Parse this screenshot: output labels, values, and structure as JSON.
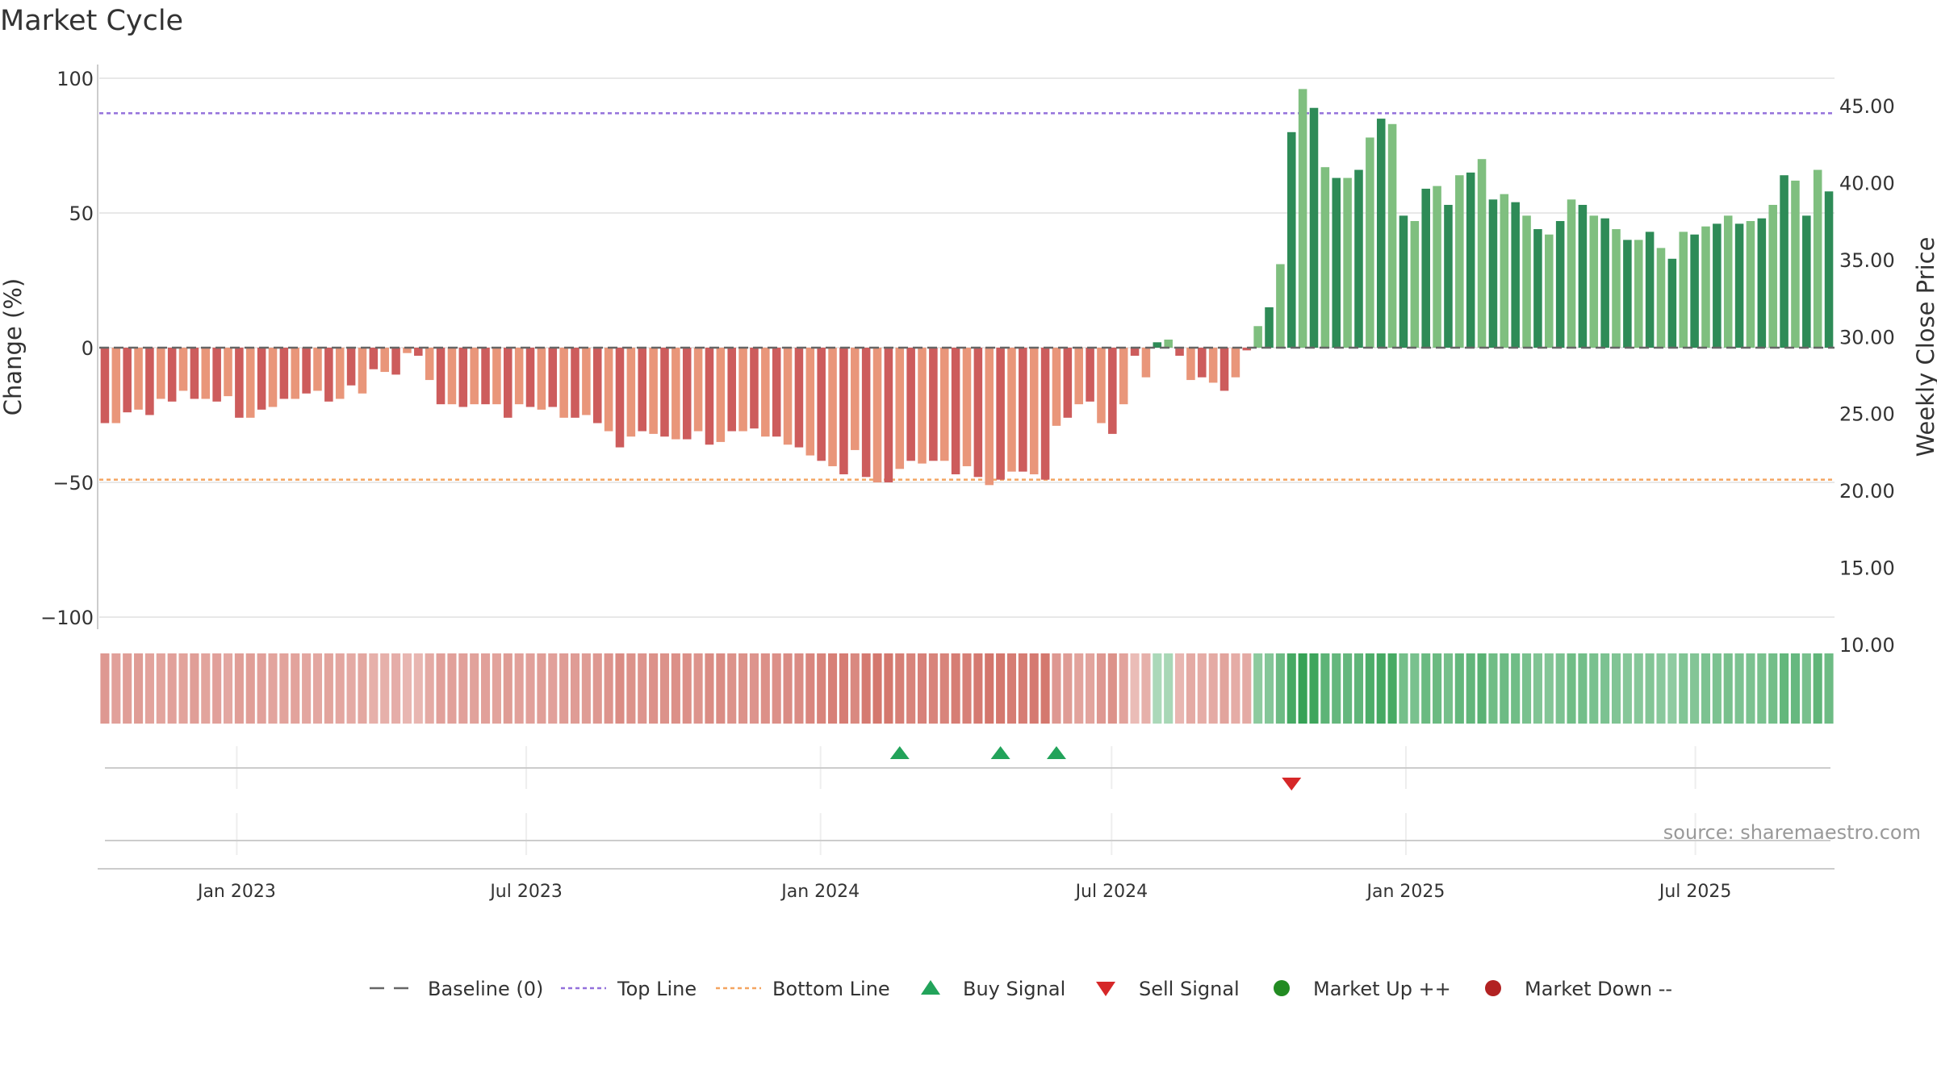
{
  "title": "Market Cycle",
  "source": "source: sharemaestro.com",
  "colors": {
    "neg_dark": "#cd5c5c",
    "neg_light": "#e9967a",
    "pos_dark": "#2e8b57",
    "pos_light": "#7fbf7f",
    "top_line": "#9370db",
    "bottom_line": "#f4a460",
    "baseline": "#666666",
    "buy": "#22a35a",
    "sell": "#d62728",
    "up": "#228b22",
    "down": "#b22222"
  },
  "chart_data": {
    "type": "bar",
    "ylabel": "Change (%)",
    "y2label": "Weekly Close Price",
    "ylim": [
      -100,
      100
    ],
    "y2lim": [
      10,
      45
    ],
    "y_ticks": [
      "100",
      "50",
      "0",
      "−50",
      "−100"
    ],
    "y2_ticks": [
      "45.00",
      "40.00",
      "35.00",
      "30.00",
      "25.00",
      "20.00",
      "15.00",
      "10.00"
    ],
    "x_ticks": [
      "Jan 2023",
      "Jul 2023",
      "Jan 2024",
      "Jul 2024",
      "Jan 2025",
      "Jul 2025"
    ],
    "top_line": 87,
    "bottom_line": -49,
    "start_date": "2022-10-07",
    "values": [
      -28,
      -28,
      -24,
      -23,
      -25,
      -19,
      -20,
      -16,
      -19,
      -19,
      -20,
      -18,
      -26,
      -26,
      -23,
      -22,
      -19,
      -19,
      -17,
      -16,
      -20,
      -19,
      -14,
      -17,
      -8,
      -9,
      -10,
      -2,
      -3,
      -12,
      -21,
      -21,
      -22,
      -21,
      -21,
      -21,
      -26,
      -21,
      -22,
      -23,
      -22,
      -26,
      -26,
      -25,
      -28,
      -31,
      -37,
      -33,
      -31,
      -32,
      -33,
      -34,
      -34,
      -31,
      -36,
      -35,
      -31,
      -31,
      -30,
      -33,
      -33,
      -36,
      -37,
      -40,
      -42,
      -44,
      -47,
      -38,
      -48,
      -50,
      -50,
      -45,
      -42,
      -43,
      -42,
      -42,
      -47,
      -44,
      -48,
      -51,
      -49,
      -46,
      -46,
      -47,
      -49,
      -29,
      -26,
      -21,
      -20,
      -28,
      -32,
      -21,
      -3,
      -11,
      2,
      3,
      -3,
      -12,
      -11,
      -13,
      -16,
      -11,
      -1,
      8,
      15,
      31,
      80,
      96,
      89,
      67,
      63,
      63,
      66,
      78,
      85,
      83,
      49,
      47,
      59,
      60,
      53,
      64,
      65,
      70,
      55,
      57,
      54,
      49,
      44,
      42,
      47,
      55,
      53,
      49,
      48,
      44,
      40,
      40,
      43,
      37,
      33,
      43,
      42,
      45,
      46,
      49,
      46,
      47,
      48,
      53,
      64,
      62,
      49,
      66,
      58
    ],
    "strength": [
      0.45,
      0.38,
      0.4,
      0.42,
      0.36,
      0.35,
      0.38,
      0.36,
      0.4,
      0.35,
      0.38,
      0.32,
      0.4,
      0.4,
      0.38,
      0.35,
      0.36,
      0.36,
      0.33,
      0.32,
      0.35,
      0.33,
      0.3,
      0.32,
      0.25,
      0.25,
      0.27,
      0.2,
      0.2,
      0.3,
      0.38,
      0.38,
      0.38,
      0.37,
      0.38,
      0.36,
      0.42,
      0.38,
      0.38,
      0.4,
      0.38,
      0.42,
      0.42,
      0.42,
      0.45,
      0.48,
      0.55,
      0.5,
      0.48,
      0.5,
      0.5,
      0.52,
      0.52,
      0.48,
      0.55,
      0.55,
      0.5,
      0.5,
      0.48,
      0.52,
      0.52,
      0.55,
      0.55,
      0.6,
      0.62,
      0.65,
      0.68,
      0.58,
      0.7,
      0.72,
      0.72,
      0.66,
      0.62,
      0.64,
      0.62,
      0.62,
      0.68,
      0.65,
      0.7,
      0.74,
      0.72,
      0.68,
      0.68,
      0.7,
      0.72,
      0.45,
      0.42,
      0.36,
      0.35,
      0.45,
      0.5,
      0.36,
      0.15,
      0.25,
      0.2,
      0.22,
      0.2,
      0.3,
      0.28,
      0.3,
      0.35,
      0.28,
      0.3,
      0.4,
      0.45,
      0.6,
      0.85,
      0.95,
      0.9,
      0.7,
      0.65,
      0.65,
      0.68,
      0.8,
      0.85,
      0.84,
      0.55,
      0.52,
      0.62,
      0.62,
      0.55,
      0.66,
      0.67,
      0.72,
      0.58,
      0.6,
      0.58,
      0.52,
      0.48,
      0.46,
      0.5,
      0.58,
      0.56,
      0.52,
      0.5,
      0.48,
      0.44,
      0.44,
      0.46,
      0.42,
      0.38,
      0.47,
      0.46,
      0.5,
      0.5,
      0.53,
      0.5,
      0.51,
      0.52,
      0.56,
      0.66,
      0.64,
      0.53,
      0.68,
      0.6
    ],
    "buy_signals": [
      "2024-02-16",
      "2024-04-19",
      "2024-05-24"
    ],
    "sell_signals": [
      "2024-10-18"
    ],
    "legend": [
      "Baseline (0)",
      "Top Line",
      "Bottom Line",
      "Buy Signal",
      "Sell Signal",
      "Market Up ++",
      "Market Down --"
    ]
  }
}
